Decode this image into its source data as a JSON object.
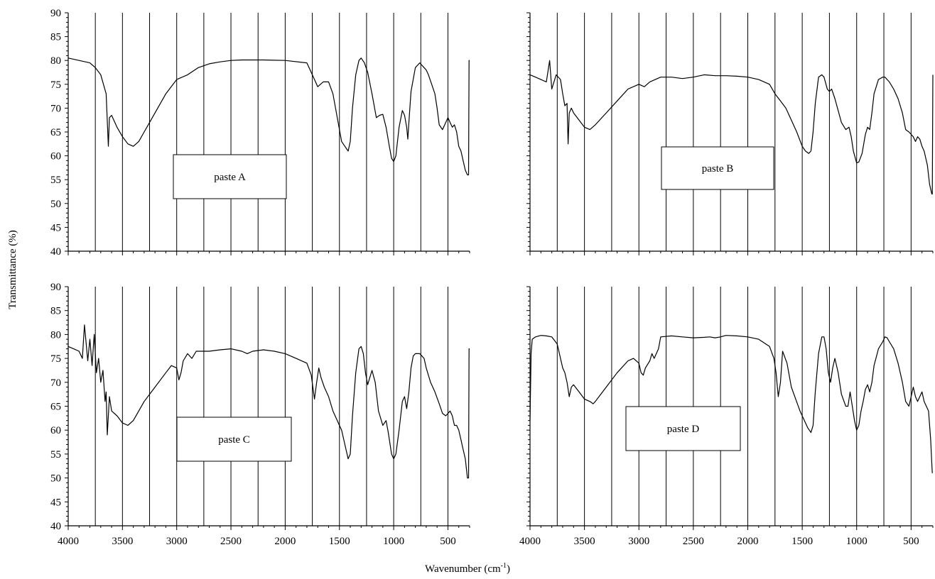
{
  "figure": {
    "ylabel": "Transmittance (%)",
    "xlabel_main": "Wavenumber (cm",
    "xlabel_sup": "-1",
    "xlabel_close": ")"
  },
  "chart_data": [
    {
      "type": "line",
      "label": "paste A",
      "x_reversed": true,
      "xlim": [
        4000,
        300
      ],
      "ylim": [
        40,
        90
      ],
      "xticks": [
        4000,
        3500,
        3000,
        2500,
        2000,
        1500,
        1000,
        500
      ],
      "yticks": [
        40,
        45,
        50,
        55,
        60,
        65,
        70,
        75,
        80,
        85,
        90
      ],
      "vertical_gridlines": [
        3750,
        3500,
        3250,
        3000,
        2750,
        2500,
        2250,
        2000,
        1750,
        1500,
        1250,
        1000,
        750,
        500
      ],
      "x": [
        4000,
        3900,
        3800,
        3750,
        3700,
        3650,
        3630,
        3620,
        3600,
        3550,
        3500,
        3450,
        3400,
        3350,
        3300,
        3200,
        3100,
        3000,
        2900,
        2800,
        2700,
        2600,
        2500,
        2400,
        2200,
        2000,
        1800,
        1750,
        1700,
        1650,
        1600,
        1560,
        1520,
        1480,
        1450,
        1420,
        1400,
        1380,
        1350,
        1320,
        1300,
        1270,
        1240,
        1200,
        1160,
        1130,
        1100,
        1070,
        1040,
        1020,
        1000,
        980,
        950,
        920,
        900,
        880,
        870,
        860,
        840,
        800,
        760,
        740,
        720,
        700,
        680,
        650,
        620,
        600,
        580,
        550,
        520,
        500,
        480,
        460,
        440,
        420,
        400,
        380,
        360,
        340,
        320,
        310,
        305,
        300
      ],
      "y": [
        80.5,
        80,
        79.5,
        78.5,
        77,
        73,
        62,
        68,
        68.5,
        66,
        64,
        62.5,
        62,
        63,
        65,
        69,
        73,
        76,
        77,
        78.5,
        79.3,
        79.7,
        80,
        80.1,
        80.1,
        80,
        79.5,
        77,
        74.5,
        75.5,
        75.5,
        73,
        68,
        63,
        62,
        61,
        63,
        70,
        77,
        80,
        80.5,
        79.5,
        77.5,
        73,
        68,
        68.5,
        68.7,
        66,
        62,
        59.5,
        58.8,
        60,
        66,
        69.5,
        68.5,
        66,
        63.5,
        67,
        73.5,
        78.5,
        79.5,
        79,
        78.5,
        78,
        77,
        75,
        73,
        70,
        66.5,
        65.5,
        67,
        68,
        67,
        66,
        66.5,
        65,
        62,
        61,
        59,
        57,
        56,
        56,
        80,
        80
      ]
    },
    {
      "type": "line",
      "label": "paste B",
      "x_reversed": true,
      "xlim": [
        4000,
        300
      ],
      "ylim": [
        40,
        90
      ],
      "xticks": [
        4000,
        3500,
        3000,
        2500,
        2000,
        1500,
        1000,
        500
      ],
      "vertical_gridlines": [
        3750,
        3500,
        3250,
        3000,
        2750,
        2500,
        2250,
        2000,
        1750,
        1500,
        1250,
        1000,
        750,
        500
      ],
      "x": [
        4000,
        3950,
        3900,
        3850,
        3820,
        3800,
        3760,
        3720,
        3700,
        3680,
        3660,
        3650,
        3640,
        3620,
        3600,
        3550,
        3500,
        3450,
        3400,
        3300,
        3200,
        3100,
        3000,
        2950,
        2900,
        2850,
        2800,
        2700,
        2600,
        2500,
        2400,
        2300,
        2200,
        2100,
        2000,
        1900,
        1800,
        1750,
        1700,
        1650,
        1600,
        1550,
        1500,
        1470,
        1440,
        1420,
        1400,
        1380,
        1350,
        1320,
        1300,
        1270,
        1250,
        1230,
        1200,
        1170,
        1140,
        1100,
        1070,
        1050,
        1030,
        1000,
        980,
        950,
        920,
        900,
        880,
        860,
        840,
        800,
        760,
        740,
        720,
        700,
        660,
        620,
        580,
        550,
        520,
        500,
        480,
        460,
        440,
        420,
        400,
        380,
        350,
        330,
        310,
        305,
        300
      ],
      "y": [
        77,
        76.5,
        76,
        75.5,
        80,
        74,
        77,
        76,
        73,
        70.5,
        71,
        62.5,
        69,
        70,
        69,
        67.5,
        66,
        65.5,
        66.5,
        69,
        71.5,
        74,
        75,
        74.5,
        75.5,
        76,
        76.5,
        76.5,
        76.2,
        76.5,
        77,
        76.8,
        76.8,
        76.7,
        76.5,
        76,
        75,
        73,
        71.5,
        70,
        67.5,
        65,
        62,
        61,
        60.5,
        61,
        65,
        71,
        76.5,
        77,
        76.5,
        74,
        73.5,
        74,
        72,
        69.5,
        67,
        65.5,
        66,
        64,
        61,
        58.5,
        58.7,
        60.5,
        64.5,
        66,
        65.5,
        69,
        73,
        76,
        76.5,
        76.5,
        76,
        75.5,
        74,
        72,
        69,
        65.5,
        65,
        64.5,
        64,
        63,
        64,
        63.5,
        62,
        61,
        58,
        54,
        52,
        52,
        77
      ]
    },
    {
      "type": "line",
      "label": "paste C",
      "x_reversed": true,
      "xlim": [
        4000,
        300
      ],
      "ylim": [
        40,
        90
      ],
      "xticks": [
        4000,
        3500,
        3000,
        2500,
        2000,
        1500,
        1000,
        500
      ],
      "yticks": [
        40,
        45,
        50,
        55,
        60,
        65,
        70,
        75,
        80,
        85,
        90
      ],
      "vertical_gridlines": [
        3750,
        3500,
        3250,
        3000,
        2750,
        2500,
        2250,
        2000,
        1750,
        1500,
        1250,
        1000,
        750,
        500
      ],
      "x": [
        4000,
        3950,
        3900,
        3870,
        3850,
        3820,
        3800,
        3780,
        3760,
        3740,
        3720,
        3700,
        3680,
        3660,
        3650,
        3640,
        3620,
        3600,
        3550,
        3500,
        3450,
        3400,
        3350,
        3300,
        3200,
        3100,
        3050,
        3000,
        2980,
        2960,
        2940,
        2900,
        2860,
        2820,
        2800,
        2700,
        2600,
        2500,
        2400,
        2350,
        2300,
        2200,
        2100,
        2000,
        1900,
        1800,
        1760,
        1730,
        1710,
        1690,
        1670,
        1640,
        1600,
        1560,
        1520,
        1480,
        1450,
        1420,
        1400,
        1380,
        1350,
        1320,
        1300,
        1280,
        1260,
        1240,
        1220,
        1200,
        1170,
        1140,
        1100,
        1070,
        1050,
        1020,
        1000,
        980,
        950,
        920,
        900,
        880,
        860,
        840,
        820,
        800,
        760,
        740,
        720,
        700,
        660,
        620,
        580,
        550,
        520,
        500,
        480,
        460,
        440,
        420,
        400,
        380,
        360,
        340,
        320,
        310,
        305,
        300
      ],
      "y": [
        77.5,
        77,
        76.5,
        75,
        82,
        74.5,
        79,
        73.5,
        80,
        72,
        75,
        70,
        72.5,
        66,
        68,
        59,
        67,
        64,
        63,
        61.5,
        61,
        62,
        64,
        66,
        69,
        72,
        73.5,
        73,
        70.5,
        72,
        74.5,
        76,
        75,
        76.5,
        76.5,
        76.5,
        76.8,
        77,
        76.5,
        76,
        76.5,
        76.8,
        76.5,
        76,
        75,
        74,
        71.5,
        66.5,
        70,
        73,
        71,
        69,
        67,
        64,
        62,
        60,
        57,
        54,
        55,
        63,
        72,
        77,
        77.5,
        76,
        72,
        69.5,
        71,
        72.5,
        70,
        64,
        61,
        62,
        59.5,
        55,
        54,
        55,
        60,
        66,
        67,
        64.5,
        68,
        73,
        75.5,
        76,
        76,
        75.5,
        75,
        73,
        70,
        68,
        65.5,
        63.5,
        63,
        63.5,
        64,
        63,
        61,
        61,
        60,
        58,
        56,
        54,
        50,
        50,
        77,
        77
      ]
    },
    {
      "type": "line",
      "label": "paste D",
      "x_reversed": true,
      "xlim": [
        4000,
        300
      ],
      "ylim": [
        40,
        90
      ],
      "xticks": [
        4000,
        3500,
        3000,
        2500,
        2000,
        1500,
        1000,
        500
      ],
      "vertical_gridlines": [
        3750,
        3500,
        3250,
        3000,
        2750,
        2500,
        2250,
        2000,
        1750,
        1500,
        1250,
        1000,
        750,
        500
      ],
      "x": [
        4000,
        3990,
        3980,
        3950,
        3900,
        3850,
        3800,
        3750,
        3720,
        3700,
        3680,
        3660,
        3640,
        3620,
        3600,
        3550,
        3500,
        3450,
        3420,
        3400,
        3350,
        3300,
        3200,
        3100,
        3050,
        3000,
        2980,
        2960,
        2940,
        2900,
        2880,
        2860,
        2820,
        2800,
        2700,
        2600,
        2500,
        2400,
        2350,
        2300,
        2250,
        2200,
        2100,
        2000,
        1900,
        1800,
        1760,
        1740,
        1720,
        1700,
        1680,
        1640,
        1600,
        1560,
        1520,
        1480,
        1450,
        1420,
        1400,
        1380,
        1350,
        1320,
        1300,
        1280,
        1260,
        1240,
        1220,
        1200,
        1170,
        1140,
        1100,
        1080,
        1060,
        1040,
        1020,
        1000,
        980,
        960,
        940,
        920,
        900,
        880,
        860,
        840,
        800,
        760,
        740,
        720,
        700,
        660,
        620,
        580,
        550,
        520,
        500,
        480,
        460,
        440,
        420,
        400,
        380,
        360,
        340,
        320,
        310,
        305
      ],
      "y": [
        62,
        76,
        79,
        79.5,
        79.8,
        79.7,
        79.5,
        78,
        75,
        73,
        72,
        70,
        67,
        69,
        69.5,
        68,
        66.5,
        66,
        65.5,
        66,
        67.5,
        69,
        72,
        74.5,
        75,
        74,
        72,
        71.5,
        73,
        74.5,
        76,
        75,
        77,
        79.5,
        79.7,
        79.5,
        79.3,
        79.4,
        79.5,
        79.3,
        79.5,
        79.8,
        79.7,
        79.5,
        79,
        77.5,
        75,
        72,
        67,
        70,
        76.5,
        74,
        69,
        66.5,
        64,
        62,
        60.5,
        59.5,
        61,
        68,
        76,
        79.5,
        79.5,
        77,
        72,
        70,
        73,
        75,
        72,
        67.5,
        65,
        65,
        68,
        65,
        62,
        60,
        61,
        64,
        66,
        68.5,
        69.5,
        68,
        70,
        73.5,
        77,
        78.5,
        79.5,
        79.3,
        78.5,
        77,
        74,
        70,
        66,
        65,
        67,
        69,
        67,
        66,
        67,
        68,
        66,
        65,
        64,
        58,
        53,
        51
      ]
    }
  ]
}
